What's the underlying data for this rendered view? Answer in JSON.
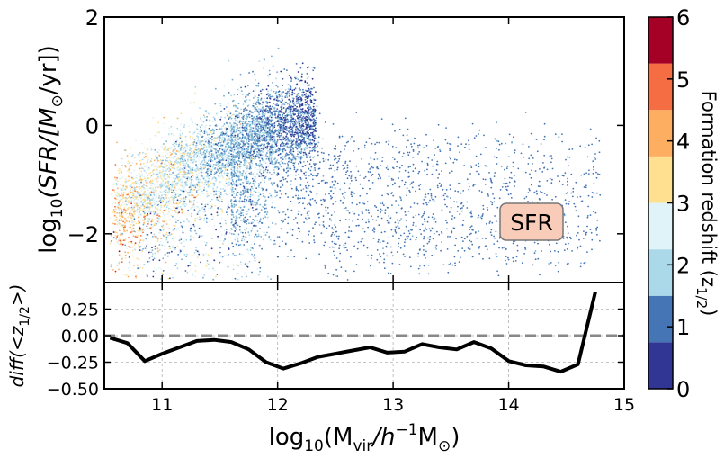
{
  "colors": {
    "colormap": [
      "#313695",
      "#4575b4",
      "#abd9e9",
      "#e0f3f8",
      "#fee090",
      "#fdae61",
      "#f46d43",
      "#a50026"
    ],
    "scatter_palette": [
      "#313695",
      "#4575b4",
      "#74add1",
      "#abd9e9",
      "#e0f3f8",
      "#fee090",
      "#fdae61",
      "#f46d43",
      "#d73027",
      "#a50026"
    ],
    "diff_line": "#000000",
    "zero_line": "#888888",
    "badge_fill": "#f9cbb9",
    "badge_stroke": "#777777"
  },
  "chart_data": [
    {
      "type": "scatter",
      "id": "sfr-vs-mvir",
      "badge": "SFR",
      "ylabel_prefix": "log",
      "ylabel_sub": "10",
      "ylabel_main": "(SFR/[M",
      "ylabel_sun": "⊙",
      "ylabel_end": "/yr])",
      "xlim": [
        10.5,
        15.0
      ],
      "ylim": [
        -2.9,
        2.0
      ],
      "yticks": [
        -2,
        0,
        2
      ],
      "ytick_labels": [
        "−2",
        "0",
        "2"
      ],
      "color_variable": "formation redshift z_1/2",
      "density_cloud": {
        "approx_points": 7000,
        "description": "dense main sequence rising from log SFR ~ -1.5 at 10.6 to ~0.5 at 12.0, then a sparser quenched population to 14.8",
        "cloud_centers": [
          {
            "x": 10.7,
            "y": -1.5,
            "z": 3.2
          },
          {
            "x": 11.0,
            "y": -0.9,
            "z": 2.3
          },
          {
            "x": 11.4,
            "y": -0.4,
            "z": 1.9
          },
          {
            "x": 11.8,
            "y": 0.1,
            "z": 1.3
          },
          {
            "x": 12.1,
            "y": 0.3,
            "z": 0.7
          },
          {
            "x": 12.6,
            "y": -0.5,
            "z": 0.4
          },
          {
            "x": 13.3,
            "y": -0.9,
            "z": 0.3
          },
          {
            "x": 14.0,
            "y": -0.8,
            "z": 0.3
          }
        ]
      }
    },
    {
      "type": "line",
      "id": "diff-panel",
      "ylabel": "diff(<z",
      "ylabel_sub": "1/2",
      "ylabel_end": ">)",
      "xlabel_prefix": "log",
      "xlabel_sub": "10",
      "xlabel_main": "(M",
      "xlabel_vir": "vir",
      "xlabel_h": "/h",
      "xlabel_exp": "−1",
      "xlabel_msun": "M",
      "xlabel_sun": "⊙",
      "xlabel_end": ")",
      "xlim": [
        10.5,
        15.0
      ],
      "ylim": [
        -0.5,
        0.5
      ],
      "xticks": [
        11,
        12,
        13,
        14,
        15
      ],
      "xtick_labels": [
        "11",
        "12",
        "13",
        "14",
        "15"
      ],
      "yticks": [
        0.25,
        0.0,
        -0.25,
        -0.5
      ],
      "ytick_labels": [
        "0.25",
        "0.00",
        "−0.25",
        "−0.50"
      ],
      "zero_line": 0.0,
      "x": [
        10.55,
        10.7,
        10.85,
        11.0,
        11.15,
        11.3,
        11.45,
        11.6,
        11.75,
        11.9,
        12.05,
        12.2,
        12.35,
        12.5,
        12.65,
        12.8,
        12.95,
        13.1,
        13.25,
        13.4,
        13.55,
        13.7,
        13.85,
        14.0,
        14.15,
        14.3,
        14.45,
        14.6,
        14.75
      ],
      "values": [
        -0.02,
        -0.07,
        -0.24,
        -0.17,
        -0.11,
        -0.05,
        -0.04,
        -0.06,
        -0.13,
        -0.25,
        -0.31,
        -0.26,
        -0.2,
        -0.17,
        -0.14,
        -0.11,
        -0.16,
        -0.15,
        -0.08,
        -0.11,
        -0.13,
        -0.06,
        -0.12,
        -0.24,
        -0.28,
        -0.29,
        -0.34,
        -0.27,
        0.41
      ]
    },
    {
      "type": "colorbar",
      "id": "formation-redshift-colorbar",
      "label": "Formation redshift (z",
      "label_sub": "1/2",
      "label_end": ")",
      "range": [
        0,
        6
      ],
      "boundaries": [
        0,
        0.75,
        1.5,
        2.25,
        3.0,
        3.75,
        4.5,
        5.25,
        6.0
      ],
      "ticks": [
        0,
        1,
        2,
        3,
        4,
        5,
        6
      ],
      "tick_labels": [
        "0",
        "1",
        "2",
        "3",
        "4",
        "5",
        "6"
      ]
    }
  ]
}
